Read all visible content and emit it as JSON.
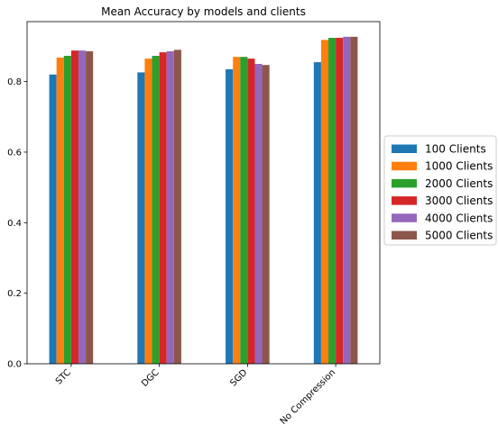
{
  "chart_data": {
    "type": "bar",
    "title": "Mean Accuracy by models and clients",
    "xlabel": "",
    "ylabel": "",
    "categories": [
      "STC",
      "DGC",
      "SGD",
      "No Compression"
    ],
    "ylim": [
      0,
      0.97
    ],
    "yticks": [
      "0.0",
      "0.2",
      "0.4",
      "0.6",
      "0.8"
    ],
    "grid": false,
    "legend_position": "center-right-outside",
    "series": [
      {
        "name": "100 Clients",
        "color": "#1f77b4",
        "values": [
          0.82,
          0.826,
          0.835,
          0.855
        ]
      },
      {
        "name": "1000 Clients",
        "color": "#ff7f0e",
        "values": [
          0.868,
          0.865,
          0.87,
          0.918
        ]
      },
      {
        "name": "2000 Clients",
        "color": "#2ca02c",
        "values": [
          0.873,
          0.873,
          0.87,
          0.924
        ]
      },
      {
        "name": "3000 Clients",
        "color": "#d62728",
        "values": [
          0.888,
          0.883,
          0.865,
          0.924
        ]
      },
      {
        "name": "4000 Clients",
        "color": "#9467bd",
        "values": [
          0.888,
          0.886,
          0.85,
          0.927
        ]
      },
      {
        "name": "5000 Clients",
        "color": "#8c564b",
        "values": [
          0.886,
          0.89,
          0.847,
          0.927
        ]
      }
    ]
  }
}
